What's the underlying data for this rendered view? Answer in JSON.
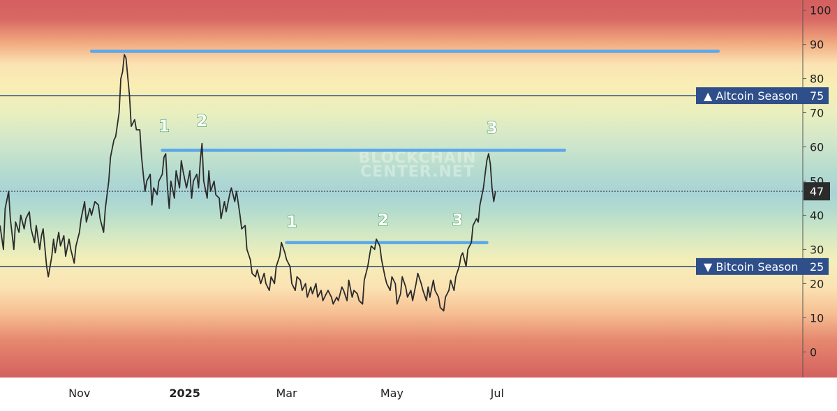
{
  "watermark": {
    "line1": "BLOCKCHAIN",
    "line2": "CENTER.NET"
  },
  "chart_data": {
    "type": "line",
    "title": "",
    "xlabel": "",
    "ylabel": "",
    "ylim": [
      -7.5,
      103
    ],
    "yticks": [
      0,
      10,
      20,
      30,
      40,
      50,
      60,
      70,
      80,
      90,
      100
    ],
    "xticks": [
      {
        "label": "Nov",
        "day": 13,
        "bold": false
      },
      {
        "label": "2025",
        "day": 74,
        "bold": true
      },
      {
        "label": "Mar",
        "day": 133,
        "bold": false
      },
      {
        "label": "May",
        "day": 194,
        "bold": false
      },
      {
        "label": "Jul",
        "day": 255,
        "bold": false
      }
    ],
    "xlim_days": [
      -33,
      432
    ],
    "current": {
      "value": "47",
      "y": 47
    },
    "thresholds": [
      {
        "name": "altcoin",
        "label": "▲ Altcoin Season",
        "value_label": "75",
        "y": 75
      },
      {
        "name": "bitcoin",
        "label": "▼ Bitcoin Season",
        "value_label": "25",
        "y": 25
      }
    ],
    "resistance_lines": [
      {
        "y": 88,
        "from_day": 20,
        "to_day": 383
      },
      {
        "y": 59,
        "from_day": 61,
        "to_day": 294
      },
      {
        "y": 32,
        "from_day": 133,
        "to_day": 249
      }
    ],
    "touch_labels": [
      {
        "text": "1",
        "day": 62,
        "y": 64.5
      },
      {
        "text": "2",
        "day": 84,
        "y": 66
      },
      {
        "text": "3",
        "day": 252,
        "y": 64
      },
      {
        "text": "1",
        "day": 136,
        "y": 36.5
      },
      {
        "text": "2",
        "day": 189,
        "y": 37
      },
      {
        "text": "3",
        "day": 232,
        "y": 37
      }
    ],
    "series": [
      {
        "points": [
          [
            -33,
            37
          ],
          [
            -31,
            30
          ],
          [
            -30,
            42
          ],
          [
            -28,
            47
          ],
          [
            -27,
            39
          ],
          [
            -25,
            30
          ],
          [
            -24,
            38
          ],
          [
            -22,
            35
          ],
          [
            -21,
            40
          ],
          [
            -19,
            36
          ],
          [
            -18,
            39
          ],
          [
            -16,
            41
          ],
          [
            -15,
            36
          ],
          [
            -13,
            32
          ],
          [
            -12,
            37
          ],
          [
            -10,
            30
          ],
          [
            -9,
            34
          ],
          [
            -8,
            36
          ],
          [
            -6,
            25
          ],
          [
            -5,
            22
          ],
          [
            -3,
            28
          ],
          [
            -2,
            33
          ],
          [
            -1,
            29
          ],
          [
            1,
            35
          ],
          [
            2,
            31
          ],
          [
            4,
            34
          ],
          [
            5,
            28
          ],
          [
            7,
            33
          ],
          [
            8,
            30
          ],
          [
            10,
            26
          ],
          [
            11,
            31
          ],
          [
            13,
            35
          ],
          [
            14,
            39
          ],
          [
            16,
            44
          ],
          [
            17,
            38
          ],
          [
            19,
            42
          ],
          [
            20,
            40
          ],
          [
            22,
            44
          ],
          [
            24,
            43
          ],
          [
            25,
            39
          ],
          [
            27,
            35
          ],
          [
            28,
            42
          ],
          [
            30,
            50
          ],
          [
            31,
            57
          ],
          [
            33,
            62
          ],
          [
            34,
            63
          ],
          [
            36,
            70
          ],
          [
            37,
            80
          ],
          [
            38,
            82
          ],
          [
            39,
            87
          ],
          [
            40,
            86
          ],
          [
            42,
            75
          ],
          [
            43,
            66
          ],
          [
            45,
            68
          ],
          [
            46,
            65
          ],
          [
            48,
            65
          ],
          [
            49,
            57
          ],
          [
            51,
            47
          ],
          [
            52,
            50
          ],
          [
            54,
            52
          ],
          [
            55,
            43
          ],
          [
            56,
            48
          ],
          [
            58,
            46
          ],
          [
            59,
            50
          ],
          [
            61,
            52
          ],
          [
            62,
            57
          ],
          [
            63,
            58
          ],
          [
            64,
            48
          ],
          [
            65,
            42
          ],
          [
            66,
            50
          ],
          [
            68,
            45
          ],
          [
            69,
            53
          ],
          [
            71,
            48
          ],
          [
            72,
            56
          ],
          [
            73,
            53
          ],
          [
            75,
            48
          ],
          [
            77,
            53
          ],
          [
            78,
            45
          ],
          [
            79,
            50
          ],
          [
            81,
            52
          ],
          [
            82,
            48
          ],
          [
            83,
            56
          ],
          [
            84,
            61
          ],
          [
            85,
            50
          ],
          [
            87,
            45
          ],
          [
            88,
            53
          ],
          [
            89,
            47
          ],
          [
            91,
            50
          ],
          [
            92,
            46
          ],
          [
            94,
            45
          ],
          [
            95,
            39
          ],
          [
            97,
            44
          ],
          [
            98,
            41
          ],
          [
            100,
            46
          ],
          [
            101,
            48
          ],
          [
            103,
            44
          ],
          [
            104,
            47
          ],
          [
            106,
            40
          ],
          [
            107,
            36
          ],
          [
            109,
            37
          ],
          [
            110,
            30
          ],
          [
            112,
            27
          ],
          [
            113,
            23
          ],
          [
            115,
            22
          ],
          [
            116,
            24
          ],
          [
            118,
            20
          ],
          [
            120,
            23
          ],
          [
            121,
            20
          ],
          [
            123,
            18
          ],
          [
            124,
            22
          ],
          [
            126,
            20
          ],
          [
            127,
            25
          ],
          [
            129,
            28
          ],
          [
            130,
            32
          ],
          [
            132,
            29
          ],
          [
            133,
            27
          ],
          [
            135,
            25
          ],
          [
            136,
            20
          ],
          [
            138,
            18
          ],
          [
            139,
            22
          ],
          [
            141,
            21
          ],
          [
            142,
            18
          ],
          [
            144,
            20
          ],
          [
            145,
            16
          ],
          [
            147,
            19
          ],
          [
            148,
            17
          ],
          [
            150,
            20
          ],
          [
            151,
            16
          ],
          [
            153,
            18
          ],
          [
            154,
            15
          ],
          [
            156,
            17
          ],
          [
            157,
            18
          ],
          [
            159,
            16
          ],
          [
            160,
            14
          ],
          [
            162,
            16
          ],
          [
            163,
            15
          ],
          [
            165,
            19
          ],
          [
            166,
            18
          ],
          [
            168,
            15
          ],
          [
            169,
            21
          ],
          [
            171,
            16
          ],
          [
            172,
            18
          ],
          [
            174,
            17
          ],
          [
            175,
            15
          ],
          [
            177,
            14
          ],
          [
            178,
            21
          ],
          [
            180,
            25
          ],
          [
            181,
            28
          ],
          [
            182,
            31
          ],
          [
            184,
            30
          ],
          [
            185,
            33
          ],
          [
            187,
            31
          ],
          [
            188,
            27
          ],
          [
            190,
            22
          ],
          [
            191,
            20
          ],
          [
            193,
            18
          ],
          [
            194,
            22
          ],
          [
            196,
            20
          ],
          [
            197,
            14
          ],
          [
            199,
            17
          ],
          [
            200,
            22
          ],
          [
            202,
            19
          ],
          [
            203,
            16
          ],
          [
            205,
            18
          ],
          [
            206,
            15
          ],
          [
            208,
            20
          ],
          [
            209,
            23
          ],
          [
            211,
            20
          ],
          [
            212,
            18
          ],
          [
            214,
            15
          ],
          [
            215,
            19
          ],
          [
            216,
            16
          ],
          [
            218,
            21
          ],
          [
            219,
            18
          ],
          [
            221,
            16
          ],
          [
            222,
            13
          ],
          [
            224,
            12
          ],
          [
            225,
            16
          ],
          [
            227,
            18
          ],
          [
            228,
            21
          ],
          [
            230,
            18
          ],
          [
            231,
            22
          ],
          [
            233,
            25
          ],
          [
            234,
            28
          ],
          [
            235,
            29
          ],
          [
            237,
            25
          ],
          [
            238,
            30
          ],
          [
            240,
            32
          ],
          [
            241,
            37
          ],
          [
            243,
            39
          ],
          [
            244,
            38
          ],
          [
            245,
            43
          ],
          [
            247,
            48
          ],
          [
            248,
            52
          ],
          [
            249,
            56
          ],
          [
            250,
            58
          ],
          [
            251,
            55
          ],
          [
            252,
            48
          ],
          [
            253,
            44
          ],
          [
            254,
            47
          ]
        ]
      }
    ]
  }
}
